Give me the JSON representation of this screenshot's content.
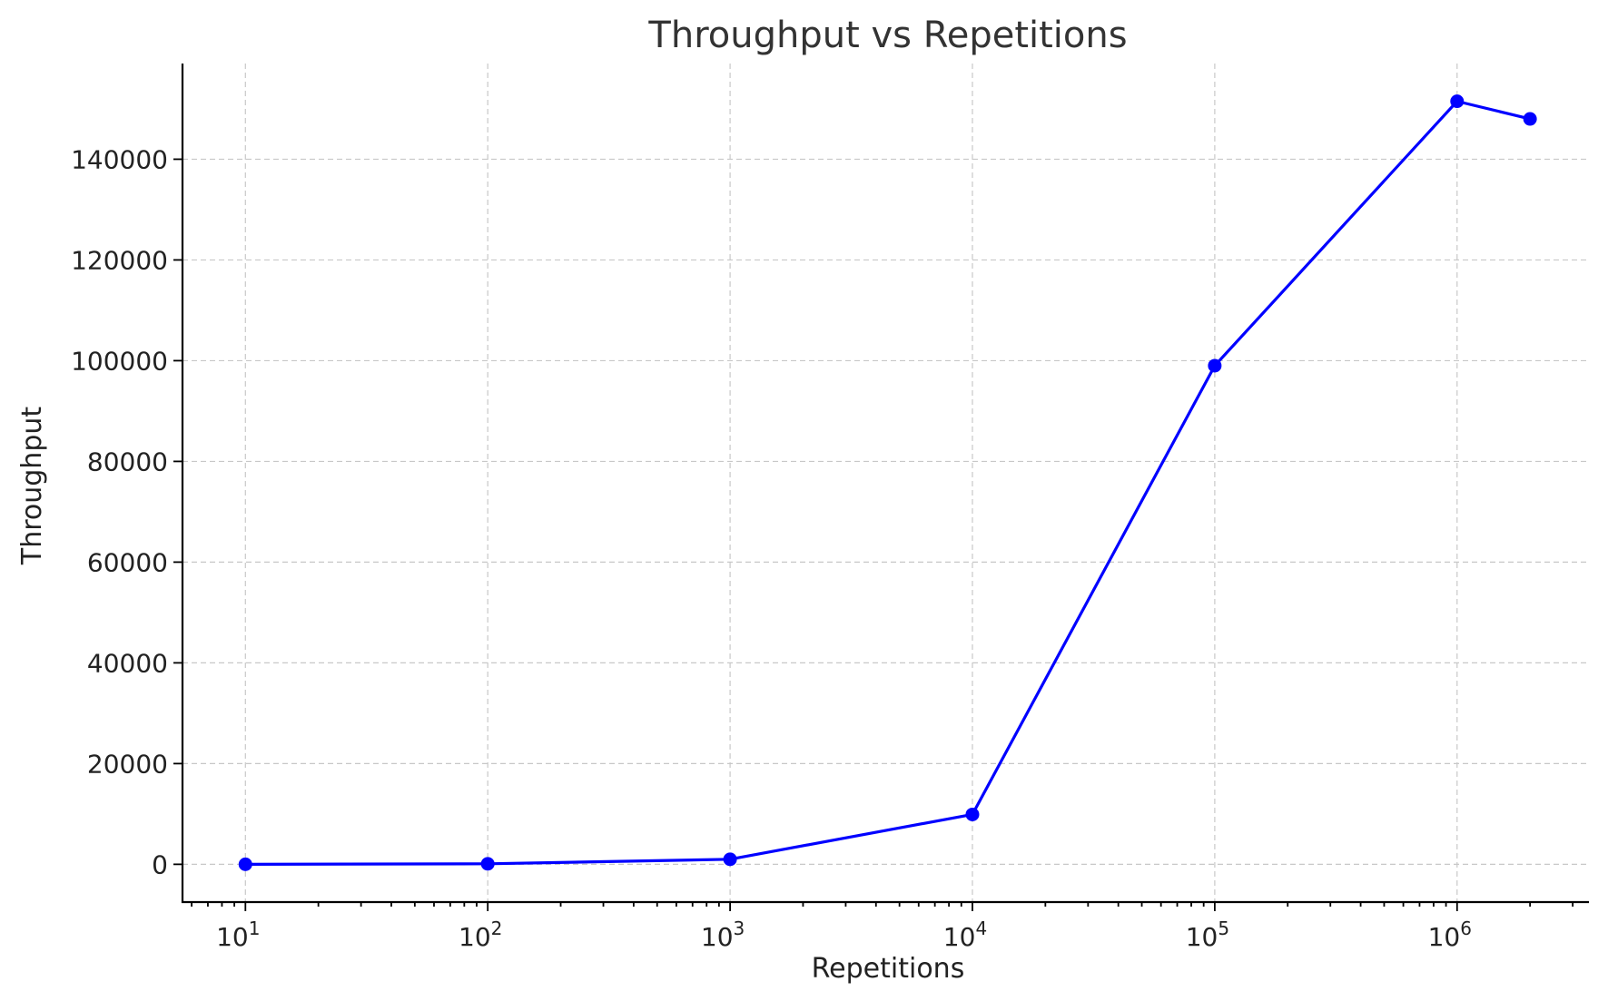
{
  "chart_data": {
    "type": "line",
    "title": "Throughput vs Repetitions",
    "xlabel": "Repetitions",
    "ylabel": "Throughput",
    "xscale": "log",
    "xlim": [
      5.5,
      3500000
    ],
    "ylim": [
      -7500,
      159000
    ],
    "grid": true,
    "x_ticks": [
      {
        "value": 10,
        "base": "10",
        "exp": "1"
      },
      {
        "value": 100,
        "base": "10",
        "exp": "2"
      },
      {
        "value": 1000,
        "base": "10",
        "exp": "3"
      },
      {
        "value": 10000,
        "base": "10",
        "exp": "4"
      },
      {
        "value": 100000,
        "base": "10",
        "exp": "5"
      },
      {
        "value": 1000000,
        "base": "10",
        "exp": "6"
      }
    ],
    "y_ticks": [
      {
        "value": 0,
        "label": "0"
      },
      {
        "value": 20000,
        "label": "20000"
      },
      {
        "value": 40000,
        "label": "40000"
      },
      {
        "value": 60000,
        "label": "60000"
      },
      {
        "value": 80000,
        "label": "80000"
      },
      {
        "value": 100000,
        "label": "100000"
      },
      {
        "value": 120000,
        "label": "120000"
      },
      {
        "value": 140000,
        "label": "140000"
      }
    ],
    "series": [
      {
        "color": "#0000ff",
        "marker": "circle",
        "x": [
          10,
          100,
          1000,
          10000,
          100000,
          1000000,
          2000000
        ],
        "y": [
          0,
          100,
          1000,
          9900,
          99000,
          151500,
          148000
        ]
      }
    ]
  }
}
